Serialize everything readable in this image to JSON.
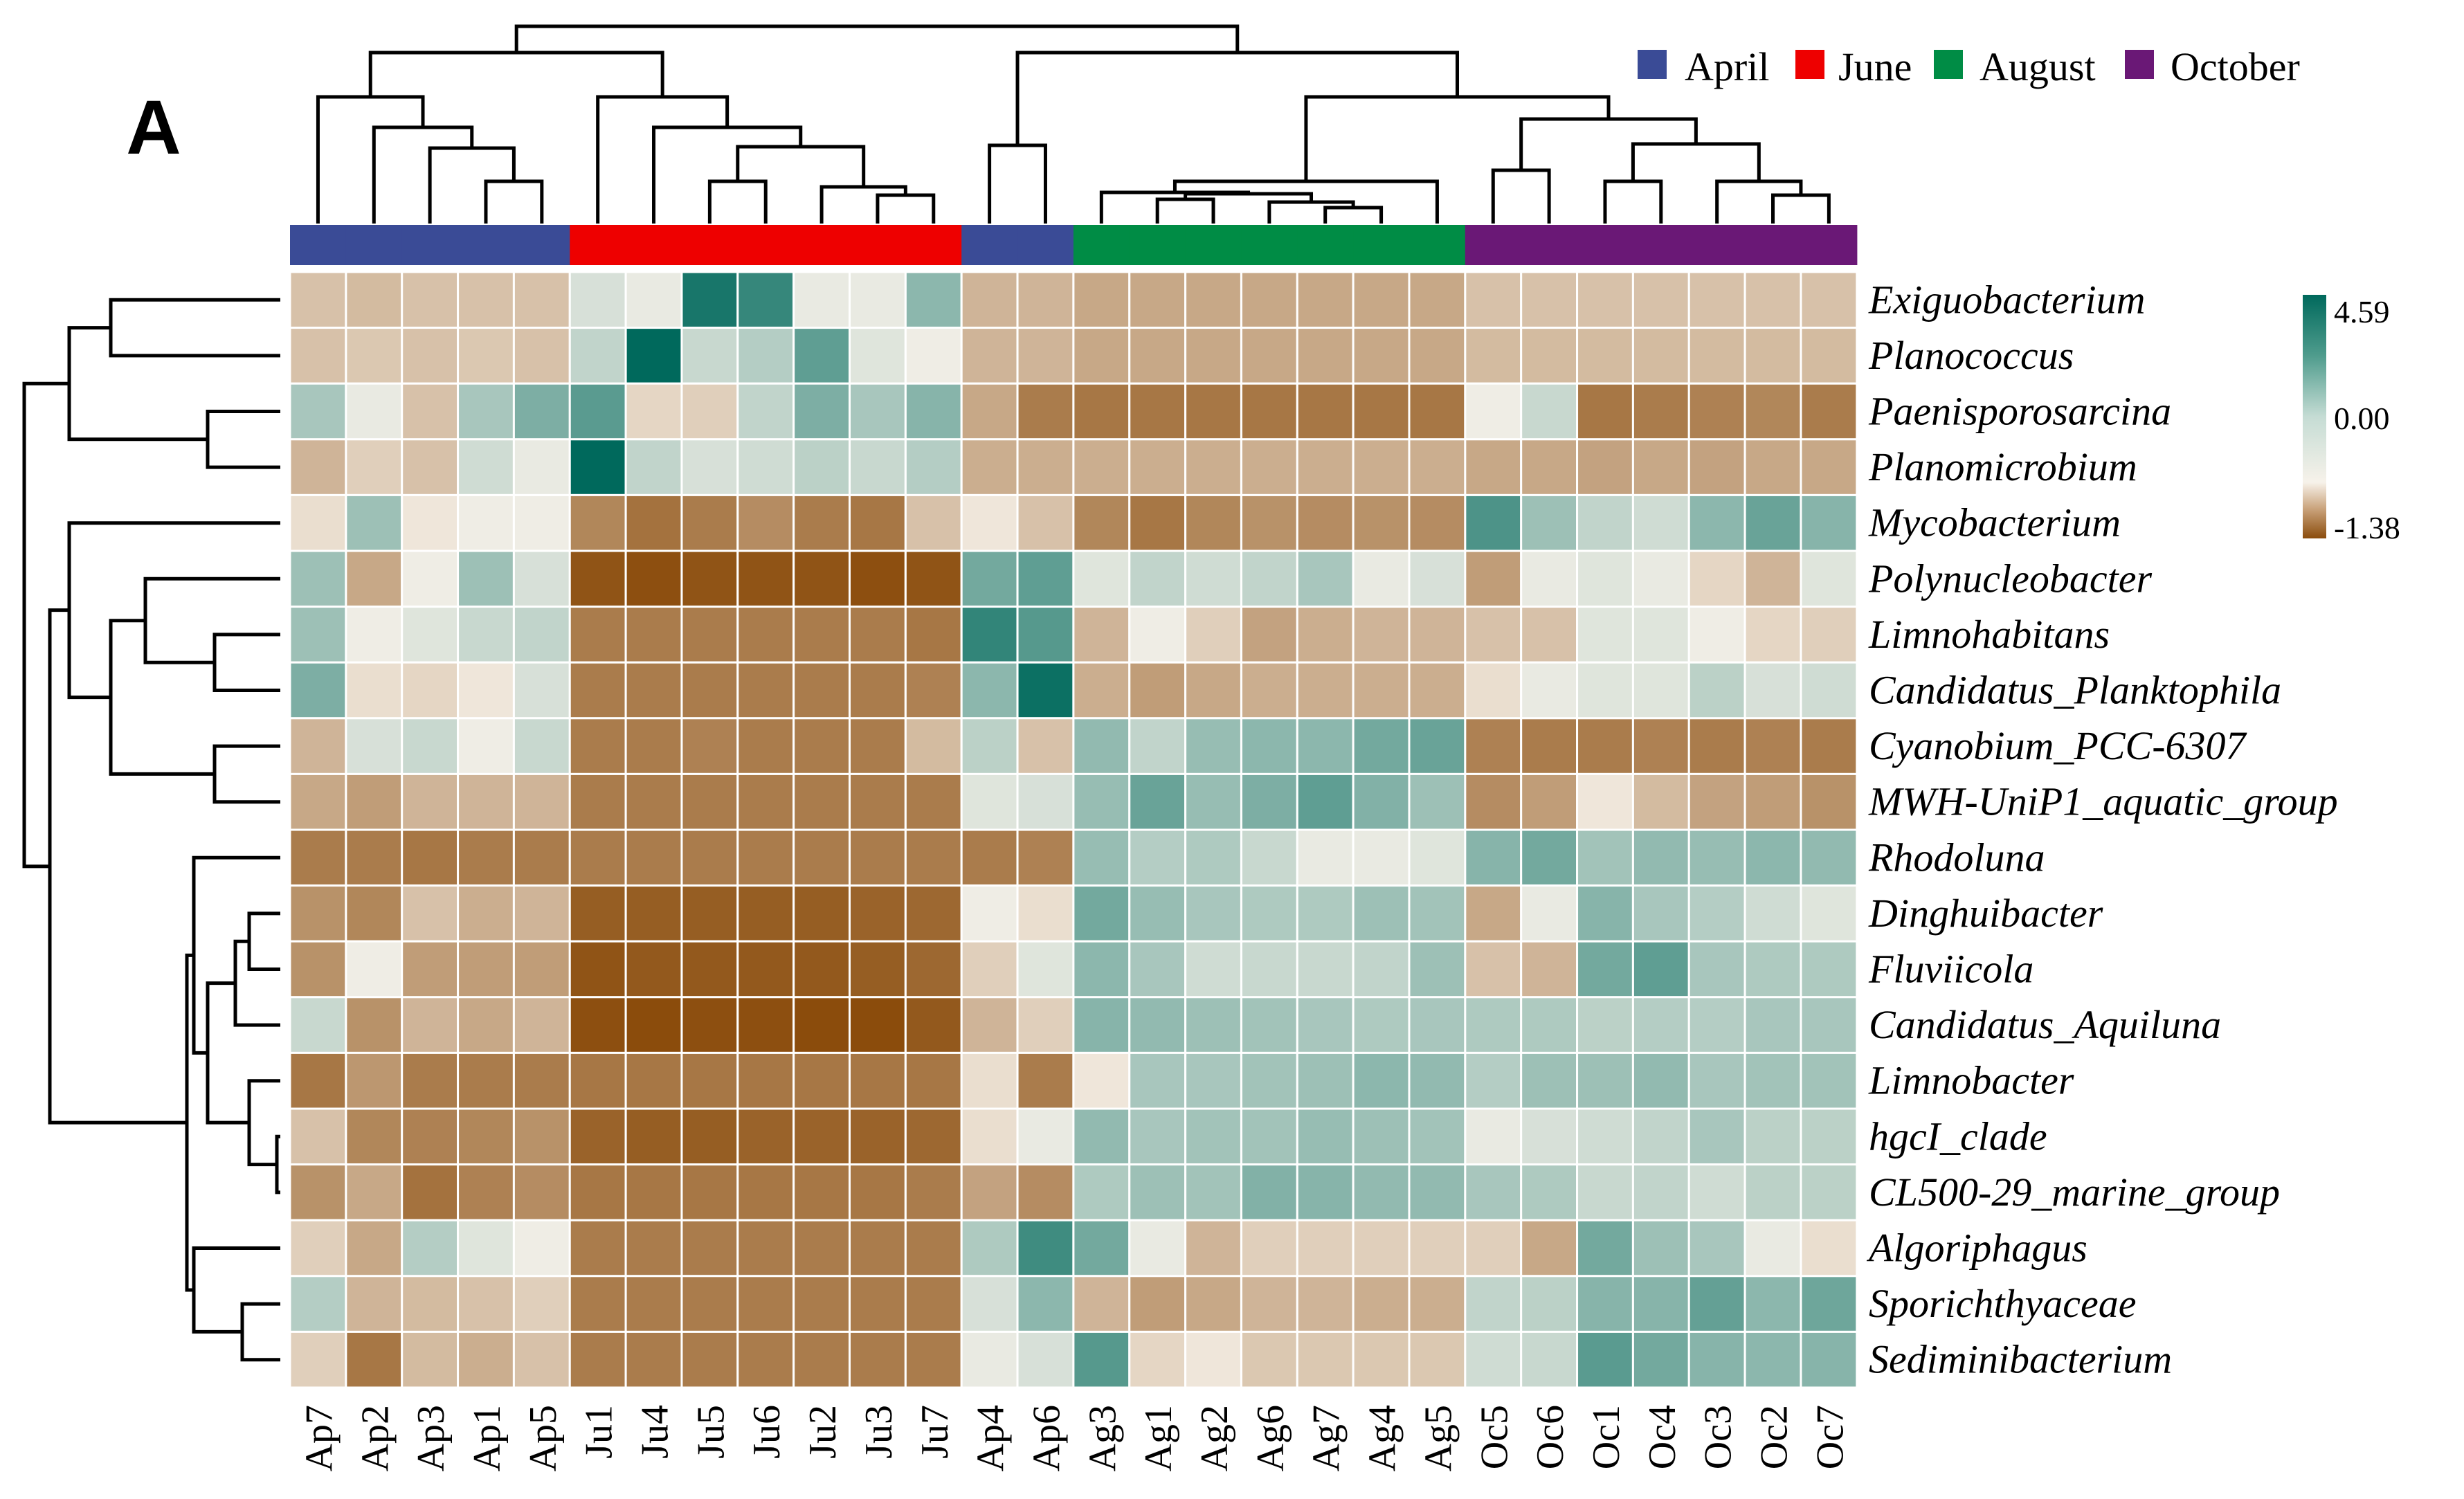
{
  "panel_label": "A",
  "chart_data": {
    "type": "heatmap",
    "title": "",
    "columns": [
      "Ap7",
      "Ap2",
      "Ap3",
      "Ap1",
      "Ap5",
      "Ju1",
      "Ju4",
      "Ju5",
      "Ju6",
      "Ju2",
      "Ju3",
      "Ju7",
      "Ap4",
      "Ap6",
      "Ag3",
      "Ag1",
      "Ag2",
      "Ag6",
      "Ag7",
      "Ag4",
      "Ag5",
      "Oc5",
      "Oc6",
      "Oc1",
      "Oc4",
      "Oc3",
      "Oc2",
      "Oc7"
    ],
    "column_groups": [
      "April",
      "April",
      "April",
      "April",
      "April",
      "June",
      "June",
      "June",
      "June",
      "June",
      "June",
      "June",
      "April",
      "April",
      "August",
      "August",
      "August",
      "August",
      "August",
      "August",
      "August",
      "October",
      "October",
      "October",
      "October",
      "October",
      "October",
      "October"
    ],
    "rows": [
      "Exiguobacterium",
      "Planococcus",
      "Paenisporosarcina",
      "Planomicrobium",
      "Mycobacterium",
      "Polynucleobacter",
      "Limnohabitans",
      "Candidatus_Planktophila",
      "Cyanobium_PCC-6307",
      "MWH-UniP1_aquatic_group",
      "Rhodoluna",
      "Dinghuibacter",
      "Fluviicola",
      "Candidatus_Aquiluna",
      "Limnobacter",
      "hgcI_clade",
      "CL500-29_marine_group",
      "Algoriphagus",
      "Sporichthyaceae",
      "Sediminibacterium"
    ],
    "values": [
      [
        -0.3,
        -0.35,
        -0.3,
        -0.3,
        -0.3,
        0.3,
        0.1,
        4.0,
        3.3,
        0.1,
        0.1,
        1.5,
        -0.4,
        -0.4,
        -0.5,
        -0.5,
        -0.5,
        -0.5,
        -0.5,
        -0.5,
        -0.5,
        -0.3,
        -0.3,
        -0.3,
        -0.3,
        -0.3,
        -0.3,
        -0.3
      ],
      [
        -0.3,
        -0.25,
        -0.3,
        -0.25,
        -0.3,
        0.6,
        4.59,
        0.5,
        0.8,
        2.4,
        0.2,
        0.05,
        -0.4,
        -0.4,
        -0.5,
        -0.5,
        -0.5,
        -0.5,
        -0.5,
        -0.5,
        -0.5,
        -0.35,
        -0.35,
        -0.35,
        -0.35,
        -0.35,
        -0.35,
        -0.35
      ],
      [
        1.0,
        0.1,
        -0.3,
        1.0,
        1.8,
        2.5,
        -0.15,
        -0.2,
        0.6,
        1.8,
        1.0,
        1.6,
        -0.5,
        -0.9,
        -0.95,
        -0.95,
        -0.95,
        -0.95,
        -0.95,
        -0.95,
        -0.95,
        0.05,
        0.5,
        -0.95,
        -0.9,
        -0.85,
        -0.8,
        -0.9
      ],
      [
        -0.4,
        -0.2,
        -0.3,
        0.4,
        0.1,
        4.59,
        0.6,
        0.3,
        0.4,
        0.7,
        0.5,
        0.8,
        -0.45,
        -0.45,
        -0.45,
        -0.45,
        -0.45,
        -0.45,
        -0.45,
        -0.45,
        -0.45,
        -0.5,
        -0.5,
        -0.55,
        -0.5,
        -0.55,
        -0.5,
        -0.5
      ],
      [
        -0.1,
        1.2,
        -0.05,
        0.05,
        0.05,
        -0.8,
        -1.0,
        -0.9,
        -0.75,
        -0.9,
        -0.95,
        -0.3,
        -0.05,
        -0.3,
        -0.8,
        -0.95,
        -0.8,
        -0.7,
        -0.75,
        -0.7,
        -0.75,
        2.8,
        1.2,
        0.6,
        0.4,
        1.5,
        2.2,
        1.6
      ],
      [
        1.2,
        -0.5,
        0.05,
        1.2,
        0.3,
        -1.3,
        -1.35,
        -1.3,
        -1.3,
        -1.3,
        -1.35,
        -1.3,
        2.0,
        2.4,
        0.2,
        0.6,
        0.4,
        0.6,
        1.0,
        0.1,
        0.3,
        -0.6,
        0.1,
        0.2,
        0.1,
        -0.15,
        -0.4,
        0.2
      ],
      [
        1.2,
        0.05,
        0.2,
        0.5,
        0.6,
        -0.9,
        -0.9,
        -0.9,
        -0.9,
        -0.9,
        -0.9,
        -0.95,
        3.4,
        2.6,
        -0.4,
        0.05,
        -0.2,
        -0.55,
        -0.45,
        -0.4,
        -0.4,
        -0.3,
        -0.3,
        0.2,
        0.2,
        0.05,
        -0.15,
        -0.2
      ],
      [
        1.8,
        -0.1,
        -0.15,
        -0.05,
        0.3,
        -0.9,
        -0.9,
        -0.9,
        -0.9,
        -0.9,
        -0.9,
        -0.85,
        1.5,
        4.3,
        -0.45,
        -0.6,
        -0.5,
        -0.45,
        -0.45,
        -0.45,
        -0.45,
        -0.1,
        0.1,
        0.2,
        0.2,
        0.7,
        0.3,
        0.4
      ],
      [
        -0.4,
        0.3,
        0.5,
        0.05,
        0.5,
        -0.9,
        -0.9,
        -0.85,
        -0.9,
        -0.9,
        -0.9,
        -0.35,
        0.7,
        -0.3,
        1.4,
        0.6,
        1.3,
        1.5,
        1.5,
        2.0,
        2.2,
        -0.85,
        -0.9,
        -0.9,
        -0.85,
        -0.9,
        -0.85,
        -0.9
      ],
      [
        -0.5,
        -0.6,
        -0.4,
        -0.4,
        -0.4,
        -0.9,
        -0.9,
        -0.9,
        -0.9,
        -0.9,
        -0.9,
        -0.9,
        0.2,
        0.3,
        1.3,
        2.2,
        1.3,
        1.8,
        2.4,
        1.7,
        1.2,
        -0.75,
        -0.6,
        -0.05,
        -0.35,
        -0.55,
        -0.6,
        -0.7
      ],
      [
        -0.9,
        -0.9,
        -0.95,
        -0.9,
        -0.9,
        -0.9,
        -0.9,
        -0.9,
        -0.9,
        -0.9,
        -0.9,
        -0.9,
        -0.9,
        -0.85,
        1.3,
        0.8,
        0.9,
        0.5,
        0.1,
        0.1,
        0.2,
        1.6,
        2.0,
        1.1,
        1.4,
        1.3,
        1.5,
        1.4
      ],
      [
        -0.7,
        -0.8,
        -0.3,
        -0.45,
        -0.4,
        -1.2,
        -1.2,
        -1.2,
        -1.2,
        -1.2,
        -1.15,
        -1.1,
        0.05,
        -0.1,
        2.0,
        1.3,
        1.0,
        0.9,
        0.9,
        1.2,
        1.1,
        -0.5,
        0.1,
        1.6,
        1.0,
        0.8,
        0.4,
        0.2
      ],
      [
        -0.7,
        0.05,
        -0.6,
        -0.6,
        -0.6,
        -1.3,
        -1.25,
        -1.25,
        -1.25,
        -1.25,
        -1.2,
        -1.1,
        -0.2,
        0.2,
        1.5,
        1.0,
        0.4,
        0.5,
        0.5,
        0.6,
        1.2,
        -0.3,
        -0.4,
        2.0,
        2.4,
        1.0,
        0.9,
        0.9
      ],
      [
        0.5,
        -0.7,
        -0.4,
        -0.5,
        -0.4,
        -1.35,
        -1.38,
        -1.35,
        -1.35,
        -1.38,
        -1.38,
        -1.25,
        -0.4,
        -0.2,
        1.6,
        1.4,
        1.2,
        1.1,
        1.0,
        0.9,
        1.0,
        0.9,
        0.9,
        0.7,
        0.8,
        0.8,
        1.0,
        1.0
      ],
      [
        -0.95,
        -0.65,
        -0.9,
        -0.9,
        -0.9,
        -0.95,
        -0.95,
        -0.95,
        -0.95,
        -0.95,
        -0.95,
        -0.95,
        -0.1,
        -0.9,
        -0.05,
        1.0,
        1.0,
        1.1,
        1.2,
        1.5,
        1.4,
        0.8,
        1.2,
        1.2,
        1.4,
        1.0,
        1.1,
        1.1
      ],
      [
        -0.3,
        -0.8,
        -0.85,
        -0.8,
        -0.7,
        -1.15,
        -1.2,
        -1.2,
        -1.15,
        -1.15,
        -1.15,
        -1.1,
        -0.1,
        0.1,
        1.4,
        1.0,
        1.1,
        1.1,
        1.3,
        1.2,
        1.1,
        0.1,
        0.3,
        0.4,
        0.6,
        1.0,
        0.7,
        0.7
      ],
      [
        -0.7,
        -0.5,
        -1.0,
        -0.85,
        -0.75,
        -0.95,
        -0.95,
        -0.95,
        -0.95,
        -0.95,
        -0.95,
        -0.9,
        -0.55,
        -0.75,
        0.9,
        1.2,
        1.1,
        1.7,
        1.6,
        1.4,
        1.4,
        1.0,
        0.9,
        0.5,
        0.6,
        0.4,
        0.7,
        0.7
      ],
      [
        -0.2,
        -0.5,
        0.8,
        0.2,
        0.05,
        -0.9,
        -0.9,
        -0.9,
        -0.9,
        -0.9,
        -0.9,
        -0.9,
        0.9,
        3.1,
        2.0,
        0.1,
        -0.4,
        -0.2,
        -0.2,
        -0.2,
        -0.2,
        -0.2,
        -0.5,
        2.0,
        1.2,
        1.0,
        0.1,
        -0.1
      ],
      [
        0.8,
        -0.4,
        -0.35,
        -0.3,
        -0.2,
        -0.9,
        -0.9,
        -0.9,
        -0.9,
        -0.9,
        -0.9,
        -0.9,
        0.3,
        1.5,
        -0.4,
        -0.6,
        -0.5,
        -0.4,
        -0.4,
        -0.45,
        -0.45,
        0.6,
        0.7,
        1.6,
        1.6,
        2.3,
        1.5,
        2.1
      ],
      [
        -0.2,
        -0.95,
        -0.35,
        -0.45,
        -0.3,
        -0.9,
        -0.9,
        -0.9,
        -0.9,
        -0.9,
        -0.9,
        -0.9,
        0.1,
        0.3,
        2.6,
        -0.15,
        -0.05,
        -0.25,
        -0.25,
        -0.25,
        -0.25,
        0.4,
        0.5,
        2.5,
        2.0,
        1.6,
        1.5,
        1.6
      ]
    ],
    "colorbar": {
      "max": 4.59,
      "mid": 0.0,
      "min": -1.38,
      "tick_labels": [
        "4.59",
        "0.00",
        "-1.38"
      ],
      "colors": {
        "high": "#00695c",
        "mid": "#f7f2ea",
        "low": "#8b4c0c"
      }
    },
    "legend": [
      {
        "label": "April",
        "color": "#3a4b96"
      },
      {
        "label": "June",
        "color": "#ee0000"
      },
      {
        "label": "August",
        "color": "#008c45"
      },
      {
        "label": "October",
        "color": "#6a1876"
      }
    ]
  }
}
